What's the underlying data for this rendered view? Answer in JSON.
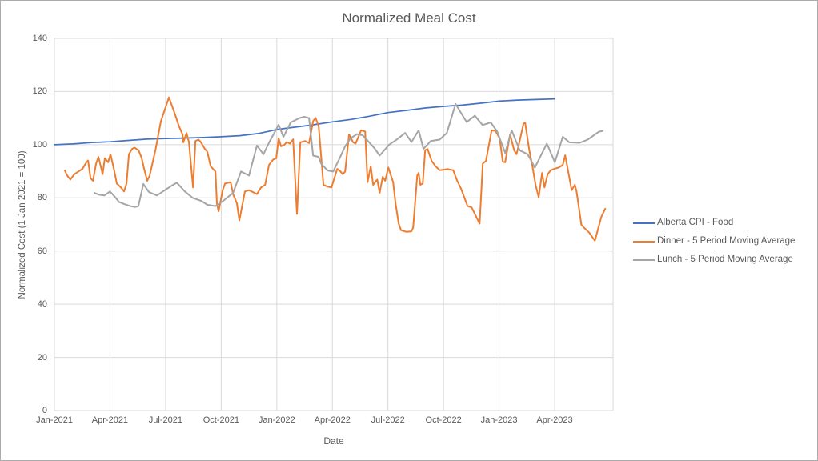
{
  "window": {
    "background": "#ffffff",
    "border_color": "#ababab"
  },
  "chart_data": {
    "type": "line",
    "title": "Normalized Meal Cost",
    "xlabel": "Date",
    "ylabel": "Normalized Cost (1 Jan 2021 = 100)",
    "x_unit": "months_since_jan_2021",
    "ylim": [
      0,
      140
    ],
    "xlim": [
      0,
      30.15
    ],
    "yticks": [
      0,
      20,
      40,
      60,
      80,
      100,
      120,
      140
    ],
    "xtick_months": [
      0,
      3,
      6,
      9,
      12,
      15,
      18,
      21,
      24,
      27
    ],
    "xtick_labels": [
      "Jan-2021",
      "Apr-2021",
      "Jul-2021",
      "Oct-2021",
      "Jan-2022",
      "Apr-2022",
      "Jul-2022",
      "Oct-2022",
      "Jan-2023",
      "Apr-2023"
    ],
    "grid": true,
    "legend_position": "right",
    "text_color": "#595959",
    "grid_color": "#d9d9d9",
    "series": [
      {
        "name": "Alberta CPI - Food",
        "color": "#4472c4",
        "points": [
          [
            0,
            100
          ],
          [
            1,
            100.3
          ],
          [
            2,
            100.8
          ],
          [
            3,
            101.1
          ],
          [
            4,
            101.6
          ],
          [
            5,
            102.1
          ],
          [
            6,
            102.3
          ],
          [
            7,
            102.5
          ],
          [
            8,
            102.7
          ],
          [
            9,
            103.0
          ],
          [
            10,
            103.4
          ],
          [
            11,
            104.2
          ],
          [
            12,
            105.7
          ],
          [
            13,
            106.6
          ],
          [
            14,
            107.5
          ],
          [
            15,
            108.6
          ],
          [
            16,
            109.5
          ],
          [
            17,
            110.7
          ],
          [
            18,
            112.1
          ],
          [
            19,
            112.9
          ],
          [
            20,
            113.8
          ],
          [
            21,
            114.4
          ],
          [
            22,
            114.9
          ],
          [
            23,
            115.6
          ],
          [
            24,
            116.4
          ],
          [
            25,
            116.8
          ],
          [
            26,
            117.0
          ],
          [
            27,
            117.2
          ]
        ]
      },
      {
        "name": "Dinner - 5 Period Moving Average",
        "color": "#ed7d31",
        "points": [
          [
            0.56,
            90.3
          ],
          [
            0.69,
            88.4
          ],
          [
            0.86,
            86.9
          ],
          [
            1.08,
            88.9
          ],
          [
            1.3,
            89.9
          ],
          [
            1.51,
            90.9
          ],
          [
            1.73,
            93.4
          ],
          [
            1.82,
            94.1
          ],
          [
            1.95,
            87.4
          ],
          [
            2.08,
            86.4
          ],
          [
            2.25,
            92.9
          ],
          [
            2.38,
            95.4
          ],
          [
            2.6,
            88.9
          ],
          [
            2.72,
            94.9
          ],
          [
            2.9,
            93.4
          ],
          [
            3.03,
            96.4
          ],
          [
            3.24,
            89.9
          ],
          [
            3.37,
            85.4
          ],
          [
            3.59,
            83.9
          ],
          [
            3.76,
            82.4
          ],
          [
            3.89,
            85.4
          ],
          [
            4.02,
            96.4
          ],
          [
            4.19,
            98.4
          ],
          [
            4.32,
            98.9
          ],
          [
            4.54,
            97.9
          ],
          [
            4.71,
            95.0
          ],
          [
            4.84,
            91.0
          ],
          [
            5.01,
            86.4
          ],
          [
            5.14,
            88.4
          ],
          [
            5.45,
            97.9
          ],
          [
            5.75,
            108.9
          ],
          [
            6.18,
            117.8
          ],
          [
            6.53,
            111.0
          ],
          [
            6.7,
            107.4
          ],
          [
            6.91,
            103.9
          ],
          [
            6.96,
            100.9
          ],
          [
            7.13,
            104.4
          ],
          [
            7.26,
            100.9
          ],
          [
            7.48,
            83.9
          ],
          [
            7.61,
            101.4
          ],
          [
            7.78,
            101.9
          ],
          [
            7.91,
            100.9
          ],
          [
            8.12,
            98.4
          ],
          [
            8.25,
            97.4
          ],
          [
            8.43,
            91.9
          ],
          [
            8.69,
            89.9
          ],
          [
            8.77,
            77.9
          ],
          [
            8.86,
            74.9
          ],
          [
            9.08,
            82.9
          ],
          [
            9.21,
            85.4
          ],
          [
            9.51,
            85.9
          ],
          [
            9.64,
            81.4
          ],
          [
            9.85,
            77.9
          ],
          [
            9.98,
            71.5
          ],
          [
            10.28,
            82.4
          ],
          [
            10.5,
            82.9
          ],
          [
            10.76,
            82.0
          ],
          [
            10.93,
            81.4
          ],
          [
            11.15,
            83.9
          ],
          [
            11.37,
            84.9
          ],
          [
            11.58,
            92.4
          ],
          [
            11.8,
            94.4
          ],
          [
            11.97,
            94.9
          ],
          [
            12.1,
            102.4
          ],
          [
            12.23,
            99.4
          ],
          [
            12.4,
            99.9
          ],
          [
            12.53,
            101.0
          ],
          [
            12.71,
            100.4
          ],
          [
            12.88,
            102.0
          ],
          [
            13.09,
            73.9
          ],
          [
            13.27,
            100.9
          ],
          [
            13.53,
            101.4
          ],
          [
            13.74,
            100.6
          ],
          [
            13.96,
            108.9
          ],
          [
            14.09,
            110.1
          ],
          [
            14.26,
            107.0
          ],
          [
            14.52,
            84.9
          ],
          [
            14.74,
            84.2
          ],
          [
            14.95,
            83.9
          ],
          [
            15.26,
            90.9
          ],
          [
            15.43,
            90.0
          ],
          [
            15.56,
            88.9
          ],
          [
            15.69,
            89.9
          ],
          [
            15.9,
            103.9
          ],
          [
            16.12,
            100.9
          ],
          [
            16.25,
            100.4
          ],
          [
            16.55,
            105.4
          ],
          [
            16.77,
            105.0
          ],
          [
            16.9,
            85.9
          ],
          [
            17.07,
            91.9
          ],
          [
            17.2,
            84.9
          ],
          [
            17.42,
            86.9
          ],
          [
            17.55,
            81.9
          ],
          [
            17.72,
            87.9
          ],
          [
            17.85,
            86.4
          ],
          [
            18.02,
            91.4
          ],
          [
            18.28,
            85.9
          ],
          [
            18.41,
            77.9
          ],
          [
            18.58,
            70.3
          ],
          [
            18.71,
            67.8
          ],
          [
            19.01,
            67.2
          ],
          [
            19.27,
            67.4
          ],
          [
            19.36,
            68.8
          ],
          [
            19.58,
            88.4
          ],
          [
            19.66,
            89.4
          ],
          [
            19.75,
            84.9
          ],
          [
            19.88,
            85.4
          ],
          [
            20.01,
            97.9
          ],
          [
            20.14,
            98.4
          ],
          [
            20.36,
            93.9
          ],
          [
            20.57,
            91.9
          ],
          [
            20.79,
            90.4
          ],
          [
            21.0,
            90.6
          ],
          [
            21.22,
            90.8
          ],
          [
            21.52,
            90.4
          ],
          [
            21.74,
            86.4
          ],
          [
            21.95,
            83.4
          ],
          [
            22.3,
            76.9
          ],
          [
            22.52,
            76.4
          ],
          [
            22.73,
            73.4
          ],
          [
            22.95,
            70.3
          ],
          [
            23.12,
            92.9
          ],
          [
            23.29,
            93.9
          ],
          [
            23.6,
            105.4
          ],
          [
            23.81,
            105.2
          ],
          [
            24.03,
            102.4
          ],
          [
            24.2,
            93.6
          ],
          [
            24.33,
            93.4
          ],
          [
            24.59,
            103.9
          ],
          [
            24.81,
            97.9
          ],
          [
            24.94,
            96.4
          ],
          [
            25.11,
            101.4
          ],
          [
            25.32,
            108.0
          ],
          [
            25.41,
            108.2
          ],
          [
            25.63,
            98.0
          ],
          [
            25.8,
            91.9
          ],
          [
            25.97,
            84.9
          ],
          [
            26.14,
            80.2
          ],
          [
            26.32,
            89.4
          ],
          [
            26.45,
            83.9
          ],
          [
            26.62,
            88.9
          ],
          [
            26.79,
            90.4
          ],
          [
            27.01,
            91.0
          ],
          [
            27.22,
            91.4
          ],
          [
            27.44,
            92.4
          ],
          [
            27.57,
            96.0
          ],
          [
            27.92,
            82.9
          ],
          [
            28.09,
            84.9
          ],
          [
            28.18,
            82.4
          ],
          [
            28.44,
            69.9
          ],
          [
            28.57,
            68.9
          ],
          [
            28.87,
            66.9
          ],
          [
            29.17,
            63.9
          ],
          [
            29.52,
            72.9
          ],
          [
            29.73,
            75.9
          ]
        ]
      },
      {
        "name": "Lunch - 5 Period Moving Average",
        "color": "#a5a5a5",
        "points": [
          [
            2.16,
            81.9
          ],
          [
            2.4,
            81.2
          ],
          [
            2.7,
            80.9
          ],
          [
            3.0,
            82.4
          ],
          [
            3.2,
            80.9
          ],
          [
            3.5,
            78.4
          ],
          [
            3.8,
            77.6
          ],
          [
            4.1,
            76.9
          ],
          [
            4.36,
            76.6
          ],
          [
            4.53,
            76.9
          ],
          [
            4.8,
            85.2
          ],
          [
            5.1,
            82.2
          ],
          [
            5.53,
            80.9
          ],
          [
            5.96,
            82.9
          ],
          [
            6.4,
            84.9
          ],
          [
            6.61,
            85.7
          ],
          [
            7.04,
            82.4
          ],
          [
            7.48,
            79.9
          ],
          [
            7.91,
            78.9
          ],
          [
            8.25,
            77.4
          ],
          [
            8.69,
            76.9
          ],
          [
            9.12,
            78.9
          ],
          [
            9.64,
            81.9
          ],
          [
            10.07,
            89.9
          ],
          [
            10.5,
            88.4
          ],
          [
            10.93,
            99.7
          ],
          [
            11.28,
            96.4
          ],
          [
            11.6,
            101.0
          ],
          [
            11.85,
            104.2
          ],
          [
            12.1,
            107.5
          ],
          [
            12.36,
            102.9
          ],
          [
            12.75,
            108.4
          ],
          [
            13.22,
            110.0
          ],
          [
            13.48,
            110.5
          ],
          [
            13.74,
            110.0
          ],
          [
            13.96,
            95.9
          ],
          [
            14.26,
            95.4
          ],
          [
            14.39,
            92.9
          ],
          [
            14.74,
            90.3
          ],
          [
            15.04,
            89.9
          ],
          [
            15.39,
            94.9
          ],
          [
            15.69,
            99.4
          ],
          [
            15.99,
            102.5
          ],
          [
            16.33,
            104.0
          ],
          [
            16.64,
            103.5
          ],
          [
            16.95,
            101.2
          ],
          [
            17.27,
            98.7
          ],
          [
            17.55,
            95.9
          ],
          [
            18.06,
            100.0
          ],
          [
            18.49,
            102.0
          ],
          [
            18.93,
            104.4
          ],
          [
            19.27,
            101.0
          ],
          [
            19.66,
            105.4
          ],
          [
            19.92,
            98.4
          ],
          [
            20.31,
            101.4
          ],
          [
            20.79,
            101.9
          ],
          [
            21.18,
            104.4
          ],
          [
            21.65,
            115.3
          ],
          [
            22.25,
            108.5
          ],
          [
            22.69,
            110.9
          ],
          [
            23.11,
            107.4
          ],
          [
            23.55,
            108.4
          ],
          [
            23.9,
            104.9
          ],
          [
            24.33,
            96.9
          ],
          [
            24.68,
            105.4
          ],
          [
            25.11,
            97.9
          ],
          [
            25.54,
            96.4
          ],
          [
            25.93,
            91.4
          ],
          [
            26.58,
            100.4
          ],
          [
            27.01,
            93.4
          ],
          [
            27.44,
            103.0
          ],
          [
            27.79,
            100.9
          ],
          [
            28.35,
            100.7
          ],
          [
            28.78,
            101.9
          ],
          [
            29.39,
            104.9
          ],
          [
            29.6,
            105.2
          ]
        ]
      }
    ]
  }
}
